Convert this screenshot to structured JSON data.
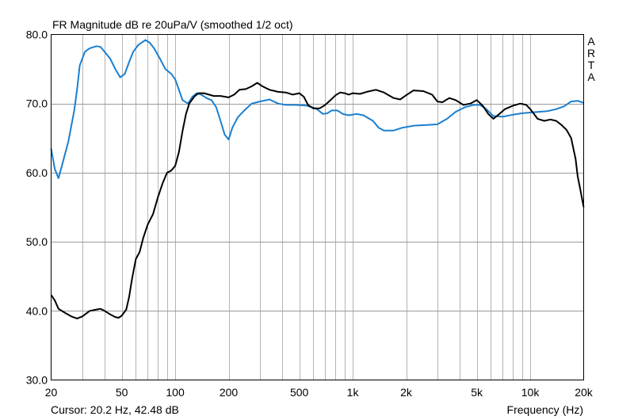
{
  "chart_data": {
    "type": "line",
    "title": "FR Magnitude dB re 20uPa/V (smoothed 1/2 oct)",
    "xlabel": "Frequency (Hz)",
    "ylabel": "",
    "side_label": [
      "A",
      "R",
      "T",
      "A"
    ],
    "cursor_text": "Cursor: 20.2 Hz, 42.48 dB",
    "x_scale": "log",
    "xlim": [
      20,
      20000
    ],
    "ylim": [
      30,
      80
    ],
    "grid": true,
    "x_ticks": [
      {
        "value": 20,
        "label": "20"
      },
      {
        "value": 50,
        "label": "50"
      },
      {
        "value": 100,
        "label": "100"
      },
      {
        "value": 200,
        "label": "200"
      },
      {
        "value": 500,
        "label": "500"
      },
      {
        "value": 1000,
        "label": "1k"
      },
      {
        "value": 2000,
        "label": "2k"
      },
      {
        "value": 5000,
        "label": "5k"
      },
      {
        "value": 10000,
        "label": "10k"
      },
      {
        "value": 20000,
        "label": "20k"
      }
    ],
    "y_ticks": [
      {
        "value": 30,
        "label": "30.0"
      },
      {
        "value": 40,
        "label": "40.0"
      },
      {
        "value": 50,
        "label": "50.0"
      },
      {
        "value": 60,
        "label": "60.0"
      },
      {
        "value": 70,
        "label": "70.0"
      },
      {
        "value": 80,
        "label": "80.0"
      }
    ],
    "series": [
      {
        "color": "#1a7fd0",
        "points": [
          [
            20,
            63.5
          ],
          [
            21,
            60.5
          ],
          [
            22,
            59.2
          ],
          [
            23,
            61
          ],
          [
            25,
            64.5
          ],
          [
            27,
            69
          ],
          [
            28,
            72
          ],
          [
            29,
            75.5
          ],
          [
            31,
            77.5
          ],
          [
            33,
            78
          ],
          [
            36,
            78.3
          ],
          [
            38,
            78.2
          ],
          [
            40,
            77.5
          ],
          [
            43,
            76.5
          ],
          [
            46,
            75
          ],
          [
            49,
            73.8
          ],
          [
            52,
            74.3
          ],
          [
            55,
            76
          ],
          [
            58,
            77.5
          ],
          [
            62,
            78.5
          ],
          [
            68,
            79.2
          ],
          [
            72,
            78.8
          ],
          [
            76,
            78
          ],
          [
            82,
            76.5
          ],
          [
            88,
            75
          ],
          [
            95,
            74.3
          ],
          [
            100,
            73.5
          ],
          [
            105,
            72
          ],
          [
            110,
            70.5
          ],
          [
            118,
            70
          ],
          [
            125,
            71
          ],
          [
            132,
            71.5
          ],
          [
            140,
            71.3
          ],
          [
            150,
            70.8
          ],
          [
            160,
            70.5
          ],
          [
            170,
            69.5
          ],
          [
            180,
            67.5
          ],
          [
            190,
            65.5
          ],
          [
            200,
            64.8
          ],
          [
            210,
            66.5
          ],
          [
            225,
            68
          ],
          [
            245,
            69
          ],
          [
            270,
            70
          ],
          [
            300,
            70.3
          ],
          [
            340,
            70.6
          ],
          [
            380,
            70
          ],
          [
            420,
            69.8
          ],
          [
            480,
            69.8
          ],
          [
            550,
            69.7
          ],
          [
            620,
            69.3
          ],
          [
            680,
            68.5
          ],
          [
            720,
            68.6
          ],
          [
            760,
            69
          ],
          [
            820,
            69
          ],
          [
            880,
            68.5
          ],
          [
            950,
            68.3
          ],
          [
            1050,
            68.5
          ],
          [
            1150,
            68.3
          ],
          [
            1300,
            67.5
          ],
          [
            1400,
            66.5
          ],
          [
            1500,
            66.1
          ],
          [
            1700,
            66.1
          ],
          [
            1900,
            66.5
          ],
          [
            2200,
            66.8
          ],
          [
            2600,
            66.9
          ],
          [
            3000,
            67
          ],
          [
            3400,
            67.8
          ],
          [
            3800,
            68.8
          ],
          [
            4300,
            69.5
          ],
          [
            4800,
            69.8
          ],
          [
            5200,
            69.8
          ],
          [
            5600,
            69.3
          ],
          [
            6200,
            68.2
          ],
          [
            7000,
            68.1
          ],
          [
            8000,
            68.4
          ],
          [
            9000,
            68.6
          ],
          [
            10000,
            68.7
          ],
          [
            11000,
            68.8
          ],
          [
            12500,
            68.9
          ],
          [
            14000,
            69.2
          ],
          [
            15500,
            69.6
          ],
          [
            17000,
            70.3
          ],
          [
            18500,
            70.4
          ],
          [
            20000,
            70.1
          ]
        ]
      },
      {
        "color": "#000000",
        "points": [
          [
            20,
            42.3
          ],
          [
            21,
            41.5
          ],
          [
            22,
            40.3
          ],
          [
            24,
            39.7
          ],
          [
            26,
            39.2
          ],
          [
            28,
            38.9
          ],
          [
            30,
            39.2
          ],
          [
            33,
            40
          ],
          [
            36,
            40.2
          ],
          [
            38,
            40.3
          ],
          [
            40,
            40
          ],
          [
            43,
            39.5
          ],
          [
            46,
            39.1
          ],
          [
            48,
            39
          ],
          [
            50,
            39.3
          ],
          [
            53,
            40.2
          ],
          [
            55,
            42
          ],
          [
            57,
            44.5
          ],
          [
            60,
            47.5
          ],
          [
            63,
            48.5
          ],
          [
            66,
            50.5
          ],
          [
            70,
            52.5
          ],
          [
            75,
            54
          ],
          [
            80,
            56.5
          ],
          [
            85,
            58.5
          ],
          [
            90,
            60
          ],
          [
            95,
            60.3
          ],
          [
            100,
            61
          ],
          [
            105,
            63
          ],
          [
            110,
            66
          ],
          [
            115,
            68.5
          ],
          [
            120,
            70
          ],
          [
            128,
            71
          ],
          [
            135,
            71.5
          ],
          [
            145,
            71.5
          ],
          [
            155,
            71.3
          ],
          [
            165,
            71.1
          ],
          [
            180,
            71.1
          ],
          [
            200,
            70.9
          ],
          [
            215,
            71.3
          ],
          [
            230,
            72
          ],
          [
            250,
            72.1
          ],
          [
            270,
            72.5
          ],
          [
            290,
            73
          ],
          [
            310,
            72.5
          ],
          [
            340,
            72
          ],
          [
            380,
            71.7
          ],
          [
            420,
            71.6
          ],
          [
            460,
            71.3
          ],
          [
            500,
            71.5
          ],
          [
            530,
            71
          ],
          [
            560,
            69.8
          ],
          [
            600,
            69.3
          ],
          [
            650,
            69.3
          ],
          [
            700,
            69.8
          ],
          [
            750,
            70.5
          ],
          [
            800,
            71.2
          ],
          [
            850,
            71.6
          ],
          [
            900,
            71.5
          ],
          [
            950,
            71.3
          ],
          [
            1000,
            71.5
          ],
          [
            1100,
            71.4
          ],
          [
            1200,
            71.7
          ],
          [
            1350,
            72
          ],
          [
            1500,
            71.6
          ],
          [
            1700,
            70.8
          ],
          [
            1850,
            70.6
          ],
          [
            2000,
            71.2
          ],
          [
            2200,
            71.9
          ],
          [
            2500,
            71.8
          ],
          [
            2800,
            71.3
          ],
          [
            3000,
            70.3
          ],
          [
            3200,
            70.2
          ],
          [
            3500,
            70.8
          ],
          [
            3800,
            70.5
          ],
          [
            4200,
            69.8
          ],
          [
            4600,
            70
          ],
          [
            5000,
            70.5
          ],
          [
            5400,
            69.7
          ],
          [
            5800,
            68.5
          ],
          [
            6200,
            67.8
          ],
          [
            6700,
            68.5
          ],
          [
            7200,
            69.2
          ],
          [
            8000,
            69.7
          ],
          [
            8800,
            70
          ],
          [
            9500,
            69.8
          ],
          [
            10000,
            69.2
          ],
          [
            10500,
            68.5
          ],
          [
            11000,
            67.8
          ],
          [
            12000,
            67.5
          ],
          [
            13000,
            67.7
          ],
          [
            14000,
            67.5
          ],
          [
            15000,
            66.9
          ],
          [
            16000,
            66.2
          ],
          [
            17000,
            65
          ],
          [
            18000,
            62
          ],
          [
            18500,
            59.5
          ],
          [
            19000,
            58
          ],
          [
            19500,
            56.5
          ],
          [
            20000,
            55
          ]
        ]
      }
    ]
  }
}
